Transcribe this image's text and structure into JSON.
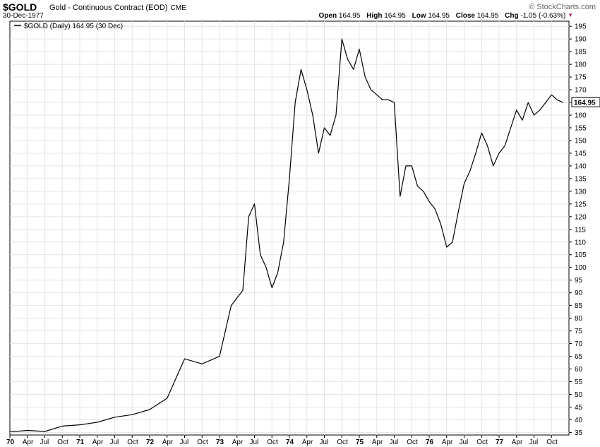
{
  "header": {
    "symbol": "$GOLD",
    "description": "Gold - Continuous Contract (EOD)",
    "exchange": "CME",
    "date": "30-Dec-1977",
    "brand": "© StockCharts.com",
    "open_label": "Open",
    "open": "164.95",
    "high_label": "High",
    "high": "164.95",
    "low_label": "Low",
    "low": "164.95",
    "close_label": "Close",
    "close": "164.95",
    "chg_label": "Chg",
    "chg": "-1.05 (-0.63%)"
  },
  "legend": "$GOLD (Daily) 164.95 (30 Dec)",
  "last_price_label": "164.95",
  "colors": {
    "line": "#000000",
    "grid": "#e4e4e4",
    "down": "#b03070"
  },
  "chart_data": {
    "type": "line",
    "title": "$GOLD",
    "ylim": [
      34,
      197
    ],
    "y_axis_side": "right",
    "grid": true,
    "yticks": [
      35,
      40,
      45,
      50,
      55,
      60,
      65,
      70,
      75,
      80,
      85,
      90,
      95,
      100,
      105,
      110,
      115,
      120,
      125,
      130,
      135,
      140,
      145,
      150,
      155,
      160,
      165,
      170,
      175,
      180,
      185,
      190,
      195
    ],
    "xticks": [
      {
        "label": "70",
        "year": true
      },
      {
        "label": "Apr"
      },
      {
        "label": "Jul"
      },
      {
        "label": "Oct"
      },
      {
        "label": "71",
        "year": true
      },
      {
        "label": "Apr"
      },
      {
        "label": "Jul"
      },
      {
        "label": "Oct"
      },
      {
        "label": "72",
        "year": true
      },
      {
        "label": "Apr"
      },
      {
        "label": "Jul"
      },
      {
        "label": "Oct"
      },
      {
        "label": "73",
        "year": true
      },
      {
        "label": "Apr"
      },
      {
        "label": "Jul"
      },
      {
        "label": "Oct"
      },
      {
        "label": "74",
        "year": true
      },
      {
        "label": "Apr"
      },
      {
        "label": "Jul"
      },
      {
        "label": "Oct"
      },
      {
        "label": "75",
        "year": true
      },
      {
        "label": "Apr"
      },
      {
        "label": "Jul"
      },
      {
        "label": "Oct"
      },
      {
        "label": "76",
        "year": true
      },
      {
        "label": "Apr"
      },
      {
        "label": "Jul"
      },
      {
        "label": "Oct"
      },
      {
        "label": "77",
        "year": true
      },
      {
        "label": "Apr"
      },
      {
        "label": "Jul"
      },
      {
        "label": "Oct"
      }
    ],
    "series": [
      {
        "name": "$GOLD (Daily)",
        "x": [
          "1970-01",
          "1970-04",
          "1970-07",
          "1970-10",
          "1971-01",
          "1971-04",
          "1971-07",
          "1971-10",
          "1972-01",
          "1972-04",
          "1972-07",
          "1972-10",
          "1973-01",
          "1973-03",
          "1973-05",
          "1973-06",
          "1973-07",
          "1973-08",
          "1973-09",
          "1973-10",
          "1973-11",
          "1973-12",
          "1974-01",
          "1974-02",
          "1974-03",
          "1974-04",
          "1974-05",
          "1974-06",
          "1974-07",
          "1974-08",
          "1974-09",
          "1974-10",
          "1974-11",
          "1974-12",
          "1975-01",
          "1975-02",
          "1975-03",
          "1975-04",
          "1975-05",
          "1975-06",
          "1975-07",
          "1975-08",
          "1975-09",
          "1975-10",
          "1975-11",
          "1975-12",
          "1976-01",
          "1976-02",
          "1976-03",
          "1976-04",
          "1976-05",
          "1976-06",
          "1976-07",
          "1976-08",
          "1976-09",
          "1976-10",
          "1976-11",
          "1976-12",
          "1977-01",
          "1977-02",
          "1977-03",
          "1977-04",
          "1977-05",
          "1977-06",
          "1977-07",
          "1977-08",
          "1977-09",
          "1977-10",
          "1977-11",
          "1977-12"
        ],
        "values": [
          35.2,
          35.8,
          35.4,
          37.5,
          38.0,
          39.0,
          41.0,
          42.0,
          44.0,
          48.5,
          64.0,
          62.0,
          65.0,
          85.0,
          91.0,
          120.0,
          125.0,
          105.0,
          100.0,
          92.0,
          98.0,
          110.0,
          135.0,
          165.0,
          178.0,
          170.0,
          160.0,
          145.0,
          155.0,
          152.0,
          160.0,
          190.0,
          182.0,
          178.0,
          186.0,
          175.0,
          170.0,
          168.0,
          166.0,
          166.0,
          165.0,
          128.0,
          140.0,
          140.0,
          132.0,
          130.0,
          126.0,
          123.0,
          117.0,
          108.0,
          110.0,
          122.0,
          133.0,
          138.0,
          145.0,
          153.0,
          148.0,
          140.0,
          145.0,
          148.0,
          155.0,
          162.0,
          158.0,
          164.95,
          160.0,
          162.0,
          164.95,
          168.0,
          166.0,
          164.95
        ]
      }
    ]
  }
}
